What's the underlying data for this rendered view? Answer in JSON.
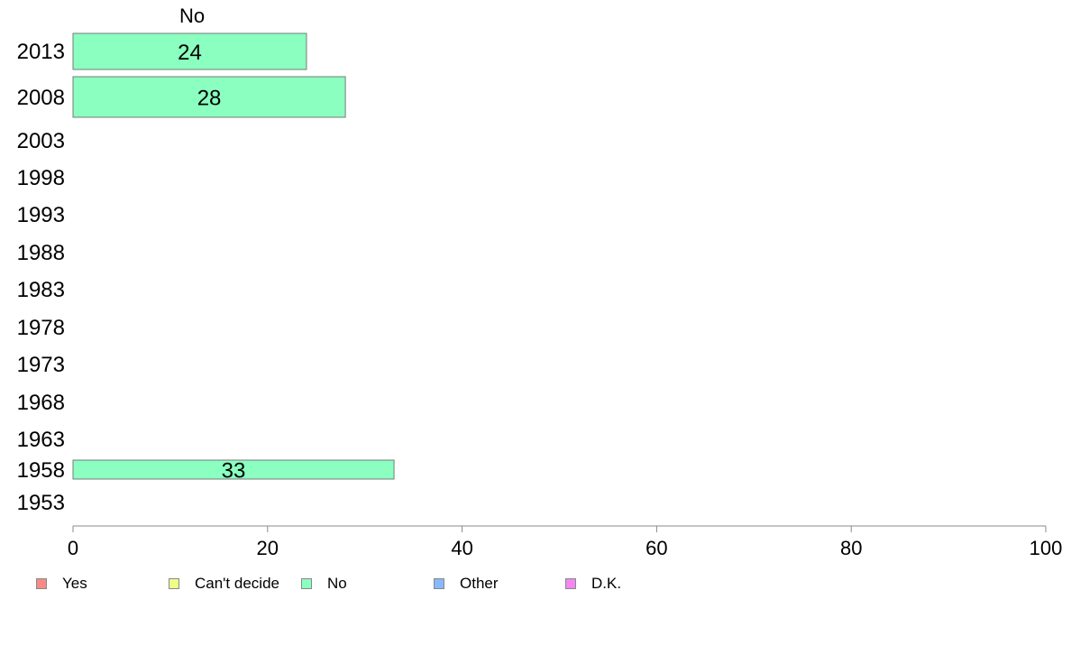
{
  "chart_data": {
    "type": "bar",
    "orientation": "horizontal",
    "title": "No",
    "categories": [
      "2013",
      "2008",
      "2003",
      "1998",
      "1993",
      "1988",
      "1983",
      "1978",
      "1973",
      "1968",
      "1963",
      "1958",
      "1953"
    ],
    "series": [
      {
        "name": "No",
        "color": "#8affc0",
        "values": [
          24,
          28,
          null,
          null,
          null,
          null,
          null,
          null,
          null,
          null,
          null,
          33,
          null
        ],
        "labels": [
          "24",
          "28",
          "",
          "",
          "",
          "",
          "",
          "",
          "",
          "",
          "",
          "33",
          ""
        ]
      }
    ],
    "xlim": [
      0,
      100
    ],
    "xticks": [
      "0",
      "20",
      "40",
      "60",
      "80",
      "100"
    ],
    "grid": false,
    "legend_position": "bottom",
    "legend": [
      {
        "label": "Yes",
        "color": "#f88a88"
      },
      {
        "label": "Can't decide",
        "color": "#eeff88"
      },
      {
        "label": "No",
        "color": "#8affc0"
      },
      {
        "label": "Other",
        "color": "#88b8ff"
      },
      {
        "label": "D.K.",
        "color": "#f088f0"
      }
    ]
  }
}
